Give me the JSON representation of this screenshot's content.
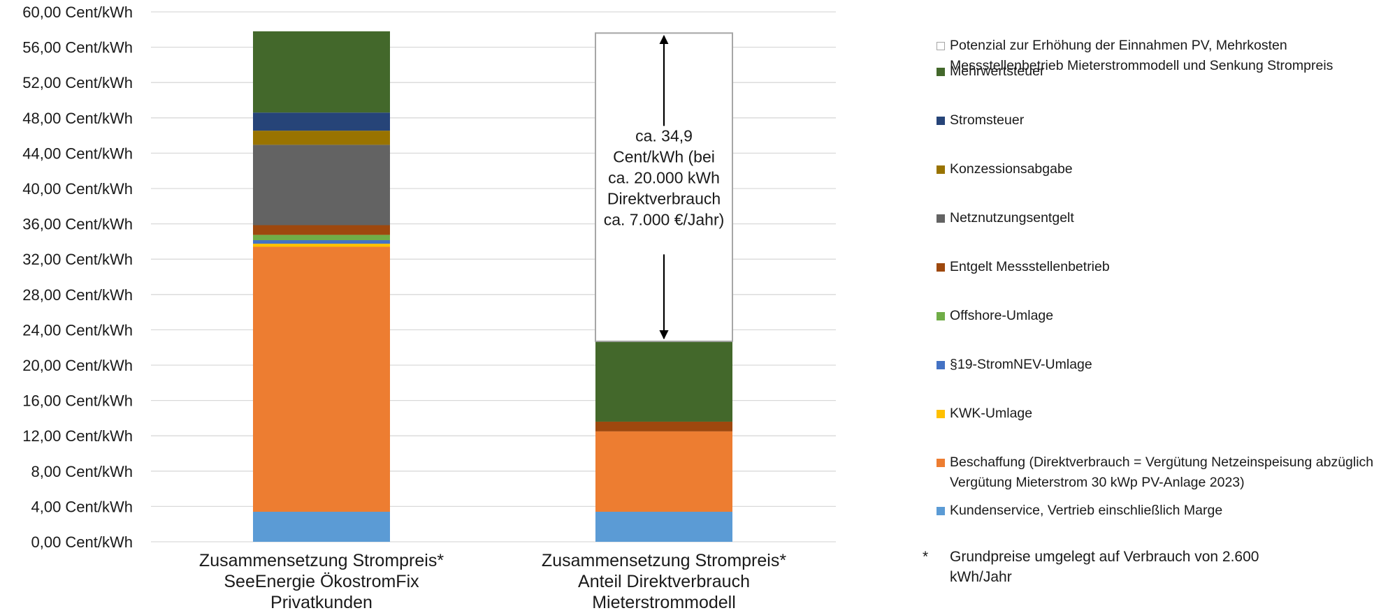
{
  "chart_data": {
    "type": "bar",
    "stacked": true,
    "y_unit": "Cent/kWh",
    "ylim": [
      0,
      60
    ],
    "y_ticks": [
      "0,00 Cent/kWh",
      "4,00 Cent/kWh",
      "8,00 Cent/kWh",
      "12,00 Cent/kWh",
      "16,00 Cent/kWh",
      "20,00 Cent/kWh",
      "24,00 Cent/kWh",
      "28,00 Cent/kWh",
      "32,00 Cent/kWh",
      "36,00 Cent/kWh",
      "40,00 Cent/kWh",
      "44,00 Cent/kWh",
      "48,00 Cent/kWh",
      "52,00 Cent/kWh",
      "56,00 Cent/kWh",
      "60,00 Cent/kWh"
    ],
    "grid": true,
    "legend_position": "right",
    "categories": [
      [
        "Zusammensetzung Strompreis*",
        "SeeEnergie ÖkostromFix",
        "Privatkunden"
      ],
      [
        "Zusammensetzung Strompreis*",
        "Anteil Direktverbrauch",
        "Mieterstrommodell"
      ]
    ],
    "series": [
      {
        "name": "Kundenservice, Vertrieb einschließlich Marge",
        "color": "#5b9bd5",
        "values": [
          3.4,
          3.4
        ]
      },
      {
        "name": "Beschaffung (Direktverbrauch = Vergütung Netzeinspeisung abzüglich Vergütung Mieterstrom 30 kWp PV-Anlage 2023)",
        "color": "#ed7d31",
        "values": [
          30.0,
          9.1
        ]
      },
      {
        "name": "KWK-Umlage",
        "color": "#ffc000",
        "values": [
          0.35,
          0
        ]
      },
      {
        "name": "§19-StromNEV-Umlage",
        "color": "#4472c4",
        "values": [
          0.4,
          0
        ]
      },
      {
        "name": "Offshore-Umlage",
        "color": "#70ad47",
        "values": [
          0.6,
          0
        ]
      },
      {
        "name": "Entgelt Messstellenbetrieb",
        "color": "#9e480e",
        "values": [
          1.1,
          1.1
        ]
      },
      {
        "name": "Netznutzungsentgelt",
        "color": "#636363",
        "values": [
          9.1,
          0
        ]
      },
      {
        "name": "Konzessionsabgabe",
        "color": "#997300",
        "values": [
          1.6,
          0
        ]
      },
      {
        "name": "Stromsteuer",
        "color": "#264478",
        "values": [
          2.05,
          0
        ]
      },
      {
        "name": "Mehrwertsteuer",
        "color": "#43682b",
        "values": [
          9.2,
          9.1
        ]
      },
      {
        "name": "Potenzial zur Erhöhung der Einnahmen PV, Mehrkosten Messstellenbetrieb Mieterstrommodell und Senkung Strompreis",
        "color": "#ffffff",
        "border": "#a6a6a6",
        "values": [
          0,
          34.9
        ]
      }
    ],
    "annotation": {
      "lines": [
        "ca. 34,9",
        "Cent/kWh (bei",
        "ca. 20.000 kWh",
        "Direktverbrauch",
        "ca. 7.000 €/Jahr)"
      ],
      "category_index": 1
    }
  },
  "legend": {
    "items": [
      {
        "label": "Potenzial zur Erhöhung der Einnahmen PV, Mehrkosten Messstellenbetrieb Mieterstrommodell und Senkung Strompreis",
        "color": "#ffffff",
        "border": "#a6a6a6"
      },
      {
        "label": "Mehrwertsteuer",
        "color": "#43682b"
      },
      {
        "label": "Stromsteuer",
        "color": "#264478"
      },
      {
        "label": "Konzessionsabgabe",
        "color": "#997300"
      },
      {
        "label": "Netznutzungsentgelt",
        "color": "#636363"
      },
      {
        "label": "Entgelt Messstellenbetrieb",
        "color": "#9e480e"
      },
      {
        "label": "Offshore-Umlage",
        "color": "#70ad47"
      },
      {
        "label": "§19-StromNEV-Umlage",
        "color": "#4472c4"
      },
      {
        "label": "KWK-Umlage",
        "color": "#ffc000"
      },
      {
        "label": "Beschaffung (Direktverbrauch = Vergütung Netzeinspeisung abzüglich Vergütung Mieterstrom 30 kWp PV-Anlage 2023)",
        "color": "#ed7d31"
      },
      {
        "label": "Kundenservice, Vertrieb einschließlich Marge",
        "color": "#5b9bd5"
      }
    ]
  },
  "footnote": {
    "marker": "*",
    "text": "Grundpreise umgelegt auf Verbrauch von 2.600 kWh/Jahr"
  }
}
